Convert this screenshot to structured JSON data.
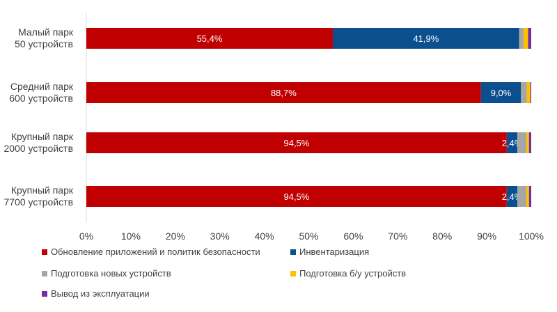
{
  "chart_data": {
    "type": "bar",
    "orientation": "horizontal",
    "stacked": true,
    "categories": [
      [
        "Малый парк",
        "50 устройств"
      ],
      [
        "Средний парк",
        "600 устройств"
      ],
      [
        "Крупный парк",
        "2000 устройств"
      ],
      [
        "Крупный парк",
        "7700 устройств"
      ]
    ],
    "series": [
      {
        "name": "Обновление приложений и политик безопасности",
        "color": "#C00000",
        "values": [
          55.4,
          88.7,
          94.5,
          94.5
        ],
        "labels": [
          "55,4%",
          "88,7%",
          "94,5%",
          "94,5%"
        ]
      },
      {
        "name": "Инвентаризация",
        "color": "#0B4F8F",
        "values": [
          41.9,
          9.0,
          2.4,
          2.4
        ],
        "labels": [
          "41,9%",
          "9,0%",
          "2,4%",
          "2,4%"
        ]
      },
      {
        "name": "Подготовка новых устройств",
        "color": "#A6A6A6",
        "values": [
          1.0,
          1.3,
          2.0,
          2.0
        ],
        "labels": [
          "",
          "",
          "",
          ""
        ]
      },
      {
        "name": "Подготовка б/у устройств",
        "color": "#FFC000",
        "values": [
          1.0,
          0.8,
          0.6,
          0.6
        ],
        "labels": [
          "",
          "",
          "",
          ""
        ]
      },
      {
        "name": "Вывод из эксплуатации",
        "color": "#7030A0",
        "values": [
          0.7,
          0.2,
          0.5,
          0.5
        ],
        "labels": [
          "",
          "",
          "",
          ""
        ]
      }
    ],
    "xlim": [
      0,
      100
    ],
    "xticks": [
      "0%",
      "10%",
      "20%",
      "30%",
      "40%",
      "50%",
      "60%",
      "70%",
      "80%",
      "90%",
      "100%"
    ],
    "grid": false,
    "legend_position": "bottom"
  }
}
